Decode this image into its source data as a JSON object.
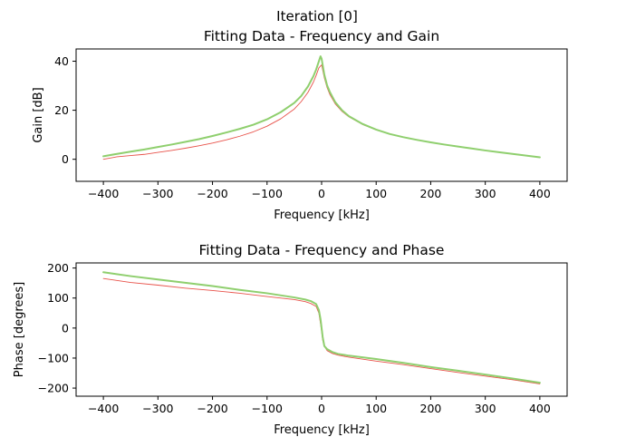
{
  "figure": {
    "suptitle": "Iteration [0]"
  },
  "colors": {
    "measured": "#e8524a",
    "fit": "#8fcf6e",
    "axis": "#000000",
    "background": "#ffffff"
  },
  "chart_data": [
    {
      "type": "line",
      "title": "Fitting Data - Frequency and Gain",
      "xlabel": "Frequency [kHz]",
      "ylabel": "Gain [dB]",
      "xlim": [
        -450,
        450
      ],
      "ylim": [
        -9,
        45
      ],
      "xticks": [
        -400,
        -300,
        -200,
        -100,
        0,
        100,
        200,
        300,
        400
      ],
      "yticks": [
        0,
        20,
        40
      ],
      "grid": false,
      "legend": "none",
      "series": [
        {
          "role": "measured",
          "x": [
            -400,
            -375,
            -350,
            -325,
            -300,
            -275,
            -250,
            -225,
            -200,
            -175,
            -150,
            -125,
            -100,
            -75,
            -50,
            -37.5,
            -25,
            -15,
            -10,
            -5,
            0,
            5,
            10,
            15,
            25,
            37.5,
            50,
            75,
            100,
            125,
            150,
            175,
            200,
            225,
            250,
            275,
            300,
            325,
            350,
            375,
            400
          ],
          "y": [
            0,
            1,
            1.5,
            2,
            2.8,
            3.6,
            4.5,
            5.5,
            6.6,
            7.9,
            9.4,
            11.2,
            13.5,
            16.5,
            20.5,
            23.5,
            27.3,
            31.5,
            34.2,
            37.3,
            38.5,
            33.2,
            29.3,
            26.5,
            22.6,
            19.5,
            17.3,
            14.2,
            12.0,
            10.3,
            9.0,
            7.9,
            6.9,
            6.0,
            5.2,
            4.4,
            3.6,
            2.9,
            2.2,
            1.5,
            0.8
          ]
        },
        {
          "role": "fit",
          "x": [
            -400,
            -375,
            -350,
            -325,
            -300,
            -275,
            -250,
            -225,
            -200,
            -175,
            -150,
            -125,
            -100,
            -75,
            -50,
            -37.5,
            -25,
            -15,
            -10,
            -5,
            -2,
            0,
            5,
            10,
            15,
            25,
            37.5,
            50,
            75,
            100,
            125,
            150,
            175,
            200,
            225,
            250,
            275,
            300,
            325,
            350,
            375,
            400
          ],
          "y": [
            1.2,
            2.2,
            3.1,
            4.0,
            5.0,
            6.0,
            7.1,
            8.2,
            9.5,
            10.9,
            12.4,
            14.1,
            16.3,
            19.2,
            23.0,
            25.8,
            29.7,
            33.9,
            36.6,
            40.0,
            42.0,
            41.0,
            34.5,
            30.2,
            27.5,
            23.3,
            20.0,
            17.6,
            14.4,
            12.1,
            10.3,
            9.0,
            7.9,
            6.9,
            6.0,
            5.2,
            4.4,
            3.6,
            2.9,
            2.2,
            1.5,
            0.8
          ]
        }
      ]
    },
    {
      "type": "line",
      "title": "Fitting Data - Frequency and Phase",
      "xlabel": "Frequency [kHz]",
      "ylabel": "Phase [degrees]",
      "xlim": [
        -450,
        450
      ],
      "ylim": [
        -227,
        217
      ],
      "xticks": [
        -400,
        -300,
        -200,
        -100,
        0,
        100,
        200,
        300,
        400
      ],
      "yticks": [
        -200,
        -100,
        0,
        100,
        200
      ],
      "grid": false,
      "legend": "none",
      "series": [
        {
          "role": "measured",
          "x": [
            -400,
            -350,
            -300,
            -250,
            -200,
            -150,
            -100,
            -50,
            -30,
            -20,
            -10,
            -5,
            -2,
            0,
            2,
            5,
            10,
            20,
            30,
            50,
            100,
            150,
            200,
            250,
            300,
            350,
            400
          ],
          "y": [
            165,
            152,
            143,
            133,
            125,
            116,
            105,
            95,
            88,
            82,
            72,
            50,
            15,
            -10,
            -40,
            -60,
            -75,
            -85,
            -90,
            -97,
            -110,
            -122,
            -135,
            -148,
            -160,
            -172,
            -186
          ]
        },
        {
          "role": "fit",
          "x": [
            -400,
            -350,
            -300,
            -250,
            -200,
            -150,
            -100,
            -50,
            -30,
            -20,
            -10,
            -5,
            -2,
            0,
            2,
            5,
            10,
            20,
            30,
            50,
            100,
            150,
            200,
            250,
            300,
            350,
            400
          ],
          "y": [
            186,
            173,
            162,
            151,
            140,
            127,
            116,
            102,
            95,
            90,
            80,
            60,
            30,
            0,
            -30,
            -60,
            -70,
            -80,
            -86,
            -92,
            -103,
            -116,
            -130,
            -142,
            -155,
            -168,
            -182
          ]
        }
      ]
    }
  ]
}
